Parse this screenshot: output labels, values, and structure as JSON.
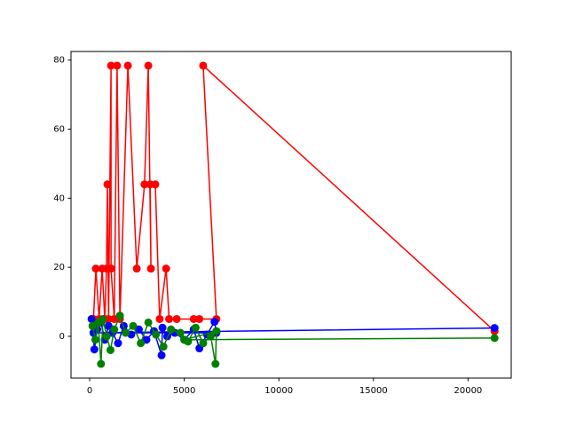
{
  "chart_data": {
    "type": "line",
    "xlim": [
      -986,
      22280
    ],
    "ylim": [
      -12.1,
      82.5
    ],
    "xticks": [
      0,
      5000,
      10000,
      15000,
      20000
    ],
    "yticks": [
      0,
      20,
      40,
      60,
      80
    ],
    "grid": false,
    "series": [
      {
        "color": "#ff0000",
        "x": [
          200,
          330,
          500,
          660,
          800,
          890,
          940,
          1000,
          1130,
          1130,
          1300,
          1450,
          1600,
          2020,
          2490,
          2900,
          3100,
          3240,
          3200,
          3470,
          3700,
          4040,
          4200,
          4600,
          5500,
          5800,
          6700,
          6000,
          21400
        ],
        "values": [
          5,
          19.6,
          5,
          19.6,
          5,
          19.6,
          44,
          5,
          78.4,
          19.6,
          5,
          78.4,
          5,
          78.4,
          19.6,
          44,
          78.4,
          19.6,
          44,
          44,
          5,
          19.6,
          5,
          5,
          5,
          5,
          5,
          78.4,
          1.5
        ]
      },
      {
        "color": "#0000ff",
        "x": [
          100,
          250,
          400,
          600,
          800,
          1000,
          1200,
          1500,
          1800,
          2200,
          2600,
          3000,
          3400,
          3800,
          3850,
          4100,
          4500,
          5000,
          5500,
          5800,
          6200,
          6600,
          6700,
          200,
          21400
        ],
        "values": [
          5,
          -3.8,
          2,
          4,
          -1,
          3,
          1,
          -2,
          3,
          0.5,
          2,
          -1,
          1.5,
          -5.5,
          2.5,
          0,
          1,
          -1,
          2,
          -3.5,
          0.5,
          4.2,
          1,
          1,
          2.4
        ]
      },
      {
        "color": "#008000",
        "x": [
          150,
          300,
          450,
          600,
          700,
          900,
          1100,
          1300,
          1600,
          1900,
          2300,
          2700,
          3100,
          3500,
          3900,
          4300,
          4800,
          5200,
          5600,
          6000,
          6400,
          6650,
          6700,
          5000,
          21400
        ],
        "values": [
          3,
          -1,
          4,
          -8,
          5,
          0,
          -4,
          2,
          6,
          1,
          3,
          -2,
          4,
          0.5,
          -3,
          2,
          1,
          -1.5,
          2.5,
          -2,
          0,
          -8,
          1.5,
          -1,
          -0.5
        ]
      }
    ]
  }
}
